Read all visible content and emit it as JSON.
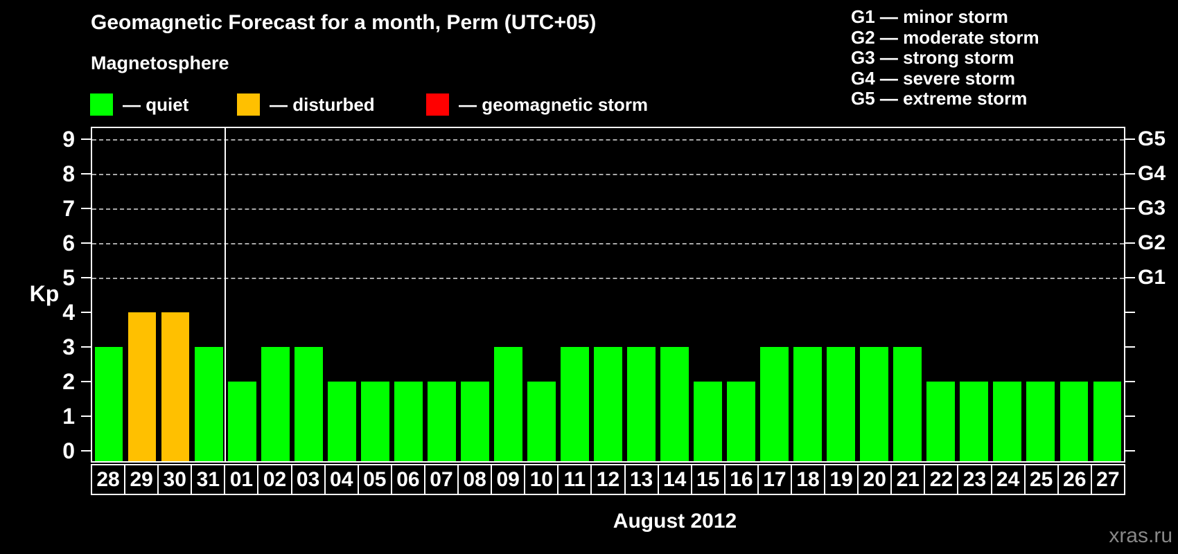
{
  "header": {
    "subtitle": "Magnetosphere"
  },
  "legend": {
    "items": [
      {
        "key": "quiet",
        "label": "— quiet"
      },
      {
        "key": "disturbed",
        "label": "— disturbed"
      },
      {
        "key": "storm",
        "label": "— geomagnetic storm"
      }
    ]
  },
  "g_legend": {
    "items": [
      "G1 — minor storm",
      "G2 — moderate storm",
      "G3 — strong storm",
      "G4 — severe storm",
      "G5 — extreme storm"
    ]
  },
  "colors": {
    "quiet": "#00FF00",
    "disturbed": "#FFC000",
    "storm": "#FF0000",
    "grid": "#AAAAAA",
    "axis": "#FFFFFF",
    "watermark": "#888888"
  },
  "footer": {
    "watermark": "xras.ru"
  },
  "chart_data": {
    "type": "bar",
    "title": "Geomagnetic Forecast for a month, Perm (UTC+05)",
    "xlabel": "August 2012",
    "ylabel": "Kp",
    "ylim": [
      0,
      9
    ],
    "y_ticks": [
      0,
      1,
      2,
      3,
      4,
      5,
      6,
      7,
      8,
      9
    ],
    "grid": "horizontal dashed lines at Kp 5-9 only",
    "legend_position": "top-left (status colors) and top-right (G scale)",
    "right_axis": {
      "labels": [
        "G1",
        "G2",
        "G3",
        "G4",
        "G5"
      ],
      "kp_levels": [
        5,
        6,
        7,
        8,
        9
      ]
    },
    "categories": [
      "28",
      "29",
      "30",
      "31",
      "01",
      "02",
      "03",
      "04",
      "05",
      "06",
      "07",
      "08",
      "09",
      "10",
      "11",
      "12",
      "13",
      "14",
      "15",
      "16",
      "17",
      "18",
      "19",
      "20",
      "21",
      "22",
      "23",
      "24",
      "25",
      "26",
      "27"
    ],
    "values": [
      3,
      4,
      4,
      3,
      2,
      3,
      3,
      2,
      2,
      2,
      2,
      2,
      3,
      2,
      3,
      3,
      3,
      3,
      2,
      2,
      3,
      3,
      3,
      3,
      3,
      2,
      2,
      2,
      2,
      2,
      2
    ],
    "statuses": [
      "quiet",
      "disturbed",
      "disturbed",
      "quiet",
      "quiet",
      "quiet",
      "quiet",
      "quiet",
      "quiet",
      "quiet",
      "quiet",
      "quiet",
      "quiet",
      "quiet",
      "quiet",
      "quiet",
      "quiet",
      "quiet",
      "quiet",
      "quiet",
      "quiet",
      "quiet",
      "quiet",
      "quiet",
      "quiet",
      "quiet",
      "quiet",
      "quiet",
      "quiet",
      "quiet",
      "quiet"
    ],
    "separator_after_index": 3
  }
}
